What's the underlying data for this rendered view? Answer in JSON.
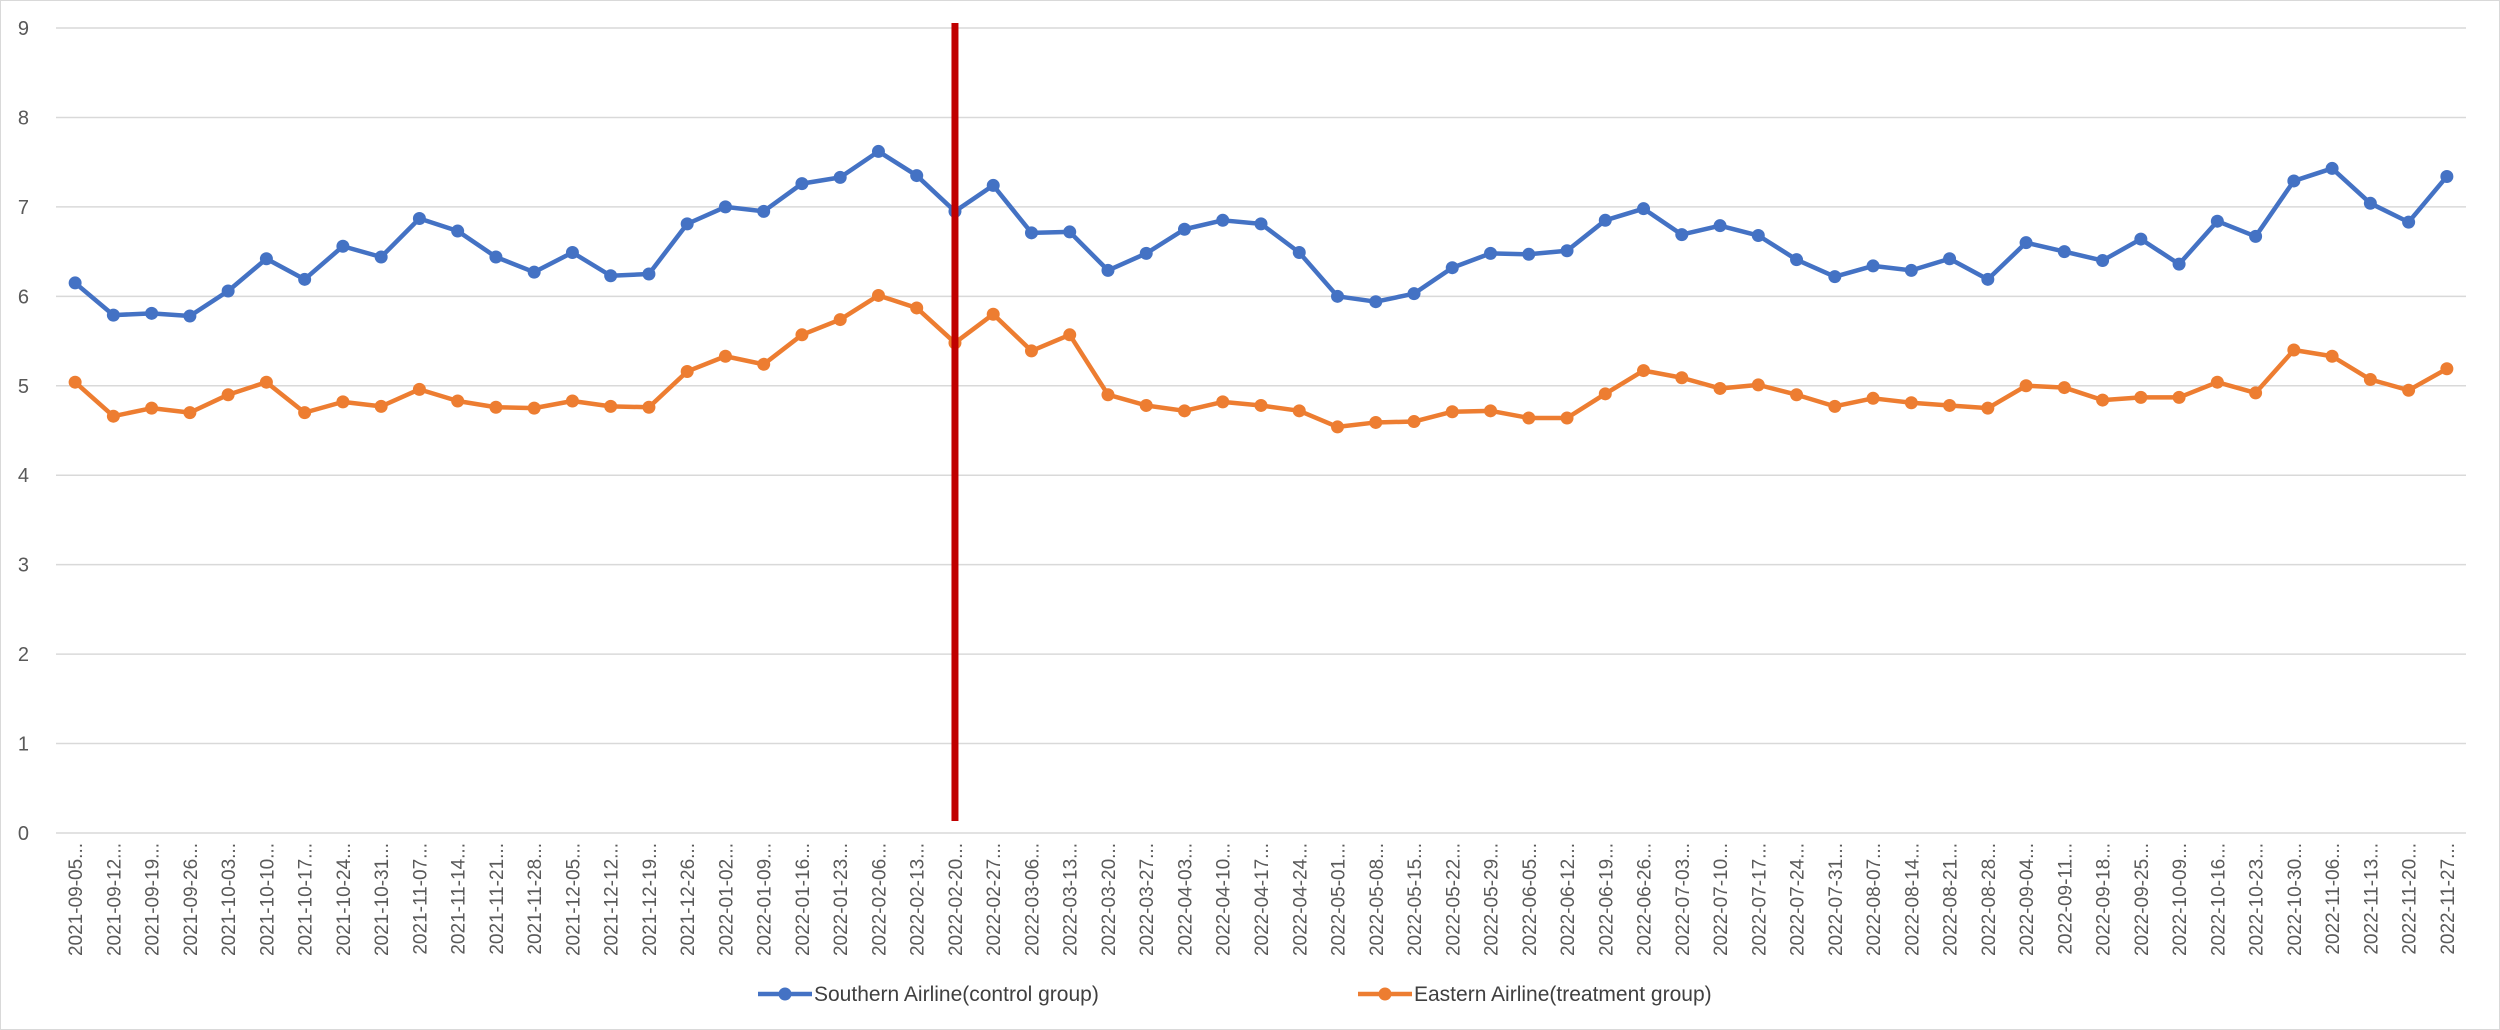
{
  "chart_data": {
    "type": "line",
    "title": "",
    "xlabel": "",
    "ylabel": "",
    "ylim": [
      0,
      9
    ],
    "y_ticks": [
      0,
      1,
      2,
      3,
      4,
      5,
      6,
      7,
      8,
      9
    ],
    "grid": "horizontal",
    "legend_position": "bottom",
    "x_tick_labels": [
      "2021-09-05...",
      "2021-09-12...",
      "2021-09-19...",
      "2021-09-26...",
      "2021-10-03...",
      "2021-10-10...",
      "2021-10-17...",
      "2021-10-24...",
      "2021-10-31...",
      "2021-11-07...",
      "2021-11-14...",
      "2021-11-21...",
      "2021-11-28...",
      "2021-12-05...",
      "2021-12-12...",
      "2021-12-19...",
      "2021-12-26...",
      "2022-01-02...",
      "2022-01-09...",
      "2022-01-16...",
      "2022-01-23...",
      "2022-02-06...",
      "2022-02-13...",
      "2022-02-20...",
      "2022-02-27...",
      "2022-03-06...",
      "2022-03-13...",
      "2022-03-20...",
      "2022-03-27...",
      "2022-04-03...",
      "2022-04-10...",
      "2022-04-17...",
      "2022-04-24...",
      "2022-05-01...",
      "2022-05-08...",
      "2022-05-15...",
      "2022-05-22...",
      "2022-05-29...",
      "2022-06-05...",
      "2022-06-12...",
      "2022-06-19...",
      "2022-06-26...",
      "2022-07-03...",
      "2022-07-10...",
      "2022-07-17...",
      "2022-07-24...",
      "2022-07-31...",
      "2022-08-07...",
      "2022-08-14...",
      "2022-08-21...",
      "2022-08-28...",
      "2022-09-04...",
      "2022-09-11...",
      "2022-09-18...",
      "2022-09-25...",
      "2022-10-09...",
      "2022-10-16...",
      "2022-10-23...",
      "2022-10-30...",
      "2022-11-06...",
      "2022-11-13...",
      "2022-11-20...",
      "2022-11-27..."
    ],
    "series": [
      {
        "name": "Southern Airline(control group)",
        "color": "#4472C4",
        "values": [
          6.15,
          5.79,
          5.81,
          5.78,
          6.06,
          6.42,
          6.19,
          6.56,
          6.44,
          6.87,
          6.73,
          6.44,
          6.27,
          6.49,
          6.23,
          6.25,
          6.81,
          7.0,
          6.95,
          7.26,
          7.33,
          7.62,
          7.35,
          6.95,
          7.24,
          6.71,
          6.72,
          6.29,
          6.48,
          6.75,
          6.85,
          6.81,
          6.49,
          6.0,
          5.94,
          6.03,
          6.32,
          6.48,
          6.47,
          6.51,
          6.85,
          6.98,
          6.69,
          6.79,
          6.68,
          6.41,
          6.22,
          6.34,
          6.29,
          6.42,
          6.19,
          6.6,
          6.5,
          6.4,
          6.64,
          6.36,
          6.84,
          6.67,
          7.29,
          7.43,
          7.04,
          6.83,
          7.34
        ]
      },
      {
        "name": "Eastern Airline(treatment group)",
        "color": "#ED7D31",
        "values": [
          5.04,
          4.66,
          4.75,
          4.7,
          4.9,
          5.04,
          4.7,
          4.82,
          4.77,
          4.96,
          4.83,
          4.76,
          4.75,
          4.83,
          4.77,
          4.76,
          5.16,
          5.33,
          5.24,
          5.57,
          5.74,
          6.01,
          5.87,
          5.48,
          5.8,
          5.39,
          5.57,
          4.9,
          4.78,
          4.72,
          4.82,
          4.78,
          4.72,
          4.54,
          4.59,
          4.6,
          4.71,
          4.72,
          4.64,
          4.64,
          4.91,
          5.17,
          5.09,
          4.97,
          5.01,
          4.9,
          4.77,
          4.86,
          4.81,
          4.78,
          4.75,
          5.0,
          4.98,
          4.84,
          4.87,
          4.87,
          5.04,
          4.92,
          5.4,
          5.33,
          5.07,
          4.95,
          5.19
        ]
      }
    ],
    "annotations": [
      {
        "type": "vertical-line",
        "x": "2022-02-20...",
        "color": "#C00000"
      }
    ]
  }
}
